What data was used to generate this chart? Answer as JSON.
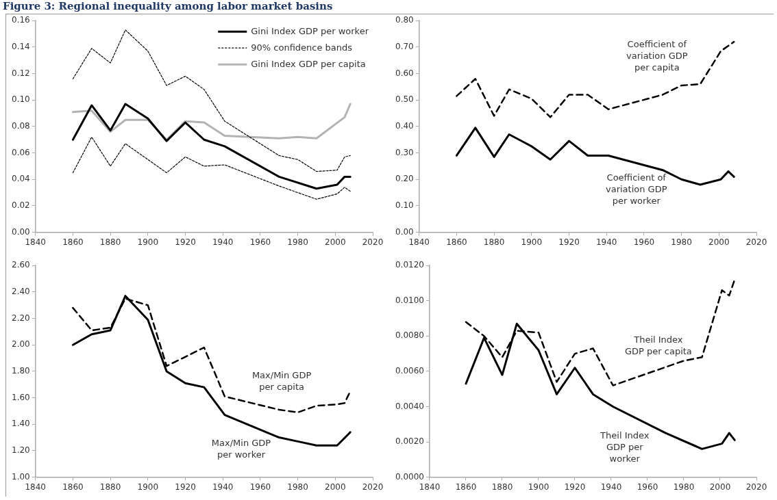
{
  "chart_data": [
    {
      "type": "line",
      "title": "Figure 3: Regional inequality among labor market basins",
      "legend": "top right",
      "grid": false,
      "marker": "none",
      "xlim": [
        1840,
        2020
      ],
      "xticks": [
        1840,
        1860,
        1880,
        1900,
        1920,
        1940,
        1960,
        1980,
        2000,
        2020
      ],
      "ylim": [
        0,
        0.16
      ],
      "yticks": [
        {
          "value": 0,
          "label": "0.00"
        },
        {
          "value": 0.02,
          "label": "0.02"
        },
        {
          "value": 0.04,
          "label": "0.04"
        },
        {
          "value": 0.06,
          "label": "0.06"
        },
        {
          "value": 0.08,
          "label": "0.08"
        },
        {
          "value": 0.1,
          "label": "0.10"
        },
        {
          "value": 0.12,
          "label": "0.12"
        },
        {
          "value": 0.14,
          "label": "0.14"
        },
        {
          "value": 0.16,
          "label": "0.16"
        }
      ],
      "series": [
        {
          "name": "Gini Index GDP per worker",
          "color": "#000000",
          "line_style": "solid",
          "x": [
            1860,
            1870,
            1880,
            1888,
            1900,
            1910,
            1920,
            1930,
            1941,
            1970,
            1990,
            2001,
            2005,
            2008
          ],
          "values": [
            0.07,
            0.096,
            0.077,
            0.097,
            0.086,
            0.069,
            0.083,
            0.07,
            0.065,
            0.042,
            0.033,
            0.036,
            0.042,
            0.042
          ]
        },
        {
          "name": "90% confidence bands",
          "color": "#000000",
          "line_style": "dotted",
          "x": [
            1860,
            1870,
            1880,
            1888,
            1900,
            1910,
            1920,
            1930,
            1941,
            1970,
            1980,
            1990,
            2001,
            2005,
            2008
          ],
          "values": [
            0.116,
            0.139,
            0.128,
            0.153,
            0.137,
            0.111,
            0.118,
            0.108,
            0.084,
            0.058,
            0.055,
            0.046,
            0.047,
            0.057,
            0.058
          ]
        },
        {
          "name": "Gini Index GDP per capita",
          "color": "#b3b3b3",
          "line_style": "solid",
          "x": [
            1860,
            1870,
            1880,
            1888,
            1900,
            1910,
            1920,
            1930,
            1941,
            1970,
            1980,
            1990,
            2005,
            2008
          ],
          "values": [
            0.091,
            0.092,
            0.076,
            0.085,
            0.085,
            0.07,
            0.084,
            0.083,
            0.073,
            0.071,
            0.072,
            0.071,
            0.087,
            0.097
          ]
        },
        {
          "color": "#000000",
          "line_style": "dotted",
          "x": [
            1860,
            1870,
            1880,
            1888,
            1900,
            1910,
            1920,
            1930,
            1941,
            1970,
            1980,
            1990,
            2001,
            2005,
            2008
          ],
          "values": [
            0.045,
            0.072,
            0.05,
            0.067,
            0.055,
            0.045,
            0.057,
            0.05,
            0.051,
            0.035,
            0.03,
            0.025,
            0.029,
            0.034,
            0.031
          ]
        }
      ]
    },
    {
      "type": "line",
      "grid": false,
      "marker": "none",
      "xlim": [
        1840,
        2020
      ],
      "xticks": [
        1840,
        1860,
        1880,
        1900,
        1920,
        1940,
        1960,
        1980,
        2000,
        2020
      ],
      "ylim": [
        0,
        0.8
      ],
      "yticks": [
        {
          "value": 0,
          "label": "0.00"
        },
        {
          "value": 0.1,
          "label": "0.10"
        },
        {
          "value": 0.2,
          "label": "0.20"
        },
        {
          "value": 0.3,
          "label": "0.30"
        },
        {
          "value": 0.4,
          "label": "0.40"
        },
        {
          "value": 0.5,
          "label": "0.50"
        },
        {
          "value": 0.6,
          "label": "0.60"
        },
        {
          "value": 0.7,
          "label": "0.70"
        },
        {
          "value": 0.8,
          "label": "0.80"
        }
      ],
      "series": [
        {
          "name": "Coefficient of\nvariation GDP\nper capita",
          "color": "#000000",
          "line_style": "dashed",
          "x": [
            1860,
            1870,
            1880,
            1888,
            1900,
            1910,
            1920,
            1930,
            1941,
            1970,
            1980,
            1990,
            2001,
            2008
          ],
          "values": [
            0.515,
            0.58,
            0.44,
            0.54,
            0.505,
            0.435,
            0.52,
            0.52,
            0.465,
            0.52,
            0.555,
            0.56,
            0.685,
            0.72
          ]
        },
        {
          "name": "Coefficient of\nvariation GDP\nper worker",
          "color": "#000000",
          "line_style": "solid",
          "x": [
            1860,
            1870,
            1880,
            1888,
            1900,
            1910,
            1920,
            1930,
            1941,
            1970,
            1980,
            1990,
            2001,
            2005,
            2008
          ],
          "values": [
            0.29,
            0.395,
            0.285,
            0.37,
            0.325,
            0.275,
            0.345,
            0.29,
            0.29,
            0.235,
            0.2,
            0.18,
            0.2,
            0.23,
            0.21
          ]
        }
      ]
    },
    {
      "type": "line",
      "grid": false,
      "marker": "none",
      "xlim": [
        1840,
        2020
      ],
      "xticks": [
        1840,
        1860,
        1880,
        1900,
        1920,
        1940,
        1960,
        1980,
        2000,
        2020
      ],
      "ylim": [
        1,
        2.6
      ],
      "yticks": [
        {
          "value": 1,
          "label": "1.00"
        },
        {
          "value": 1.2,
          "label": "1.20"
        },
        {
          "value": 1.4,
          "label": "1.40"
        },
        {
          "value": 1.6,
          "label": "1.60"
        },
        {
          "value": 1.8,
          "label": "1.80"
        },
        {
          "value": 2,
          "label": "2.00"
        },
        {
          "value": 2.2,
          "label": "2.20"
        },
        {
          "value": 2.4,
          "label": "2.40"
        },
        {
          "value": 2.6,
          "label": "2.60"
        }
      ],
      "series": [
        {
          "name": "Max/Min GDP\nper capita",
          "color": "#000000",
          "line_style": "dashed",
          "x": [
            1860,
            1870,
            1880,
            1888,
            1900,
            1910,
            1930,
            1941,
            1970,
            1980,
            1990,
            2001,
            2005,
            2008
          ],
          "values": [
            2.28,
            2.11,
            2.13,
            2.35,
            2.3,
            1.84,
            1.98,
            1.61,
            1.51,
            1.49,
            1.54,
            1.55,
            1.56,
            1.65
          ]
        },
        {
          "name": "Max/Min GDP\nper worker",
          "color": "#000000",
          "line_style": "solid",
          "x": [
            1860,
            1870,
            1880,
            1888,
            1900,
            1910,
            1920,
            1930,
            1941,
            1970,
            1980,
            1990,
            2001,
            2008
          ],
          "values": [
            2.0,
            2.08,
            2.11,
            2.37,
            2.19,
            1.8,
            1.71,
            1.68,
            1.47,
            1.3,
            1.27,
            1.24,
            1.24,
            1.34
          ]
        }
      ]
    },
    {
      "type": "line",
      "grid": false,
      "marker": "none",
      "xlim": [
        1840,
        2020
      ],
      "xticks": [
        1840,
        1860,
        1880,
        1900,
        1920,
        1940,
        1960,
        1980,
        2000,
        2020
      ],
      "ylim": [
        0,
        0.012
      ],
      "yticks": [
        {
          "value": 0,
          "label": "0.0000"
        },
        {
          "value": 0.002,
          "label": "0.0020"
        },
        {
          "value": 0.004,
          "label": "0.0040"
        },
        {
          "value": 0.006,
          "label": "0.0060"
        },
        {
          "value": 0.008,
          "label": "0.0080"
        },
        {
          "value": 0.01,
          "label": "0.0100"
        },
        {
          "value": 0.012,
          "label": "0.0120"
        }
      ],
      "series": [
        {
          "name": "Theil Index\nGDP per capita",
          "color": "#000000",
          "line_style": "dashed",
          "x": [
            1860,
            1870,
            1880,
            1888,
            1900,
            1910,
            1920,
            1930,
            1941,
            1980,
            1990,
            2001,
            2005,
            2008
          ],
          "values": [
            0.0088,
            0.008,
            0.0068,
            0.0083,
            0.0082,
            0.0054,
            0.007,
            0.0073,
            0.0052,
            0.0066,
            0.0068,
            0.0106,
            0.0103,
            0.0112
          ]
        },
        {
          "name": "Theil Index\nGDP per\nworker",
          "color": "#000000",
          "line_style": "solid",
          "x": [
            1860,
            1870,
            1880,
            1888,
            1900,
            1910,
            1920,
            1930,
            1941,
            1970,
            1990,
            2001,
            2005,
            2008
          ],
          "values": [
            0.0053,
            0.0079,
            0.0058,
            0.0087,
            0.0072,
            0.0047,
            0.0062,
            0.0047,
            0.004,
            0.0025,
            0.0016,
            0.0019,
            0.0025,
            0.0021
          ]
        }
      ]
    }
  ]
}
